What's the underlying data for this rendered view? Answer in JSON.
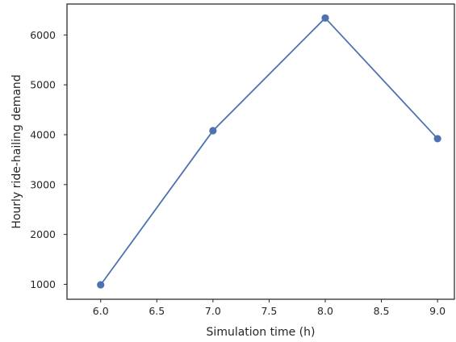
{
  "chart_data": {
    "type": "line",
    "title": "",
    "xlabel": "Simulation time (h)",
    "ylabel": "Hourly ride-hailing demand",
    "x": [
      6.0,
      7.0,
      8.0,
      9.0
    ],
    "series": [
      {
        "values": [
          990,
          4080,
          6340,
          3920
        ],
        "color": "#4c72b0",
        "marker": "circle"
      }
    ],
    "xlim": [
      5.7,
      9.15
    ],
    "ylim": [
      700,
      6620
    ],
    "xticks": [
      "6.0",
      "6.5",
      "7.0",
      "7.5",
      "8.0",
      "8.5",
      "9.0"
    ],
    "yticks": [
      "1000",
      "2000",
      "3000",
      "4000",
      "5000",
      "6000"
    ],
    "grid": false,
    "legend": "none"
  }
}
